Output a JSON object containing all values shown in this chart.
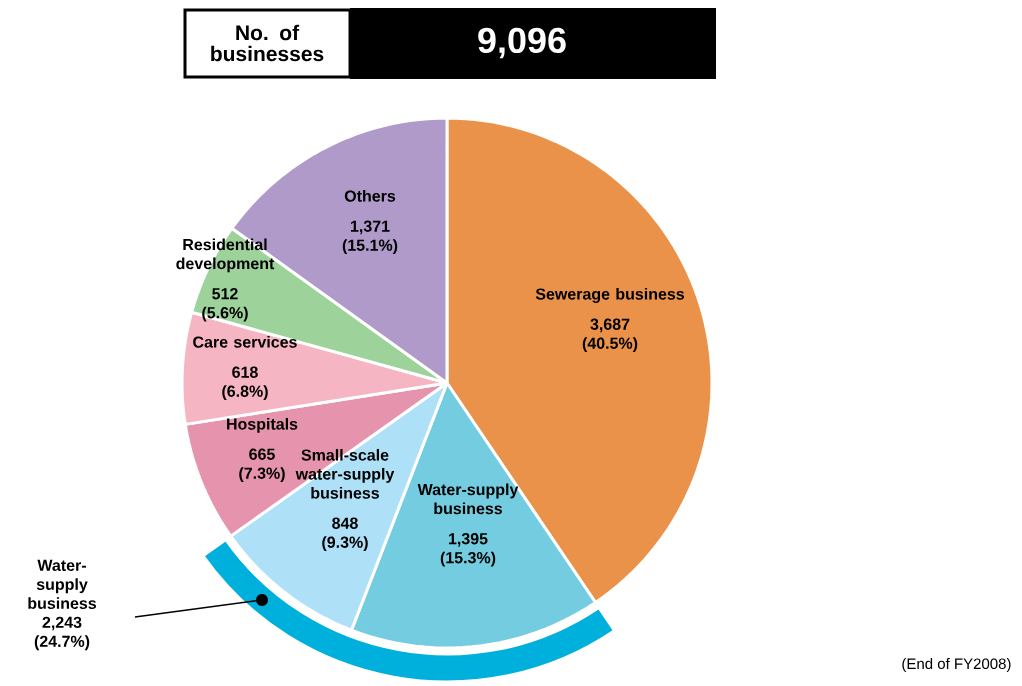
{
  "chart_data": {
    "type": "pie",
    "title": "No. of businesses",
    "subtitle": "9,096",
    "categories": [
      "Sewerage business",
      "Water-supply business",
      "Small-scale water-supply business",
      "Hospitals",
      "Care services",
      "Residential development",
      "Others"
    ],
    "values": [
      3687,
      1395,
      848,
      665,
      618,
      512,
      1371
    ],
    "value_labels": [
      "3,687 (40.5%)",
      "1,395 (15.3%)",
      "848 (9.3%)",
      "665 (7.3%)",
      "618 (6.8%)",
      "512 (5.6%)",
      "1,371 (15.1%)"
    ],
    "colors": [
      "#eb924a",
      "#74cce0",
      "#aee0f7",
      "#e693ad",
      "#f6b5c2",
      "#9dd39b",
      "#b09ac9"
    ],
    "annotations": [
      "Water-supply business 2,243 (24.7%)",
      "(End of FY2008)"
    ]
  }
}
